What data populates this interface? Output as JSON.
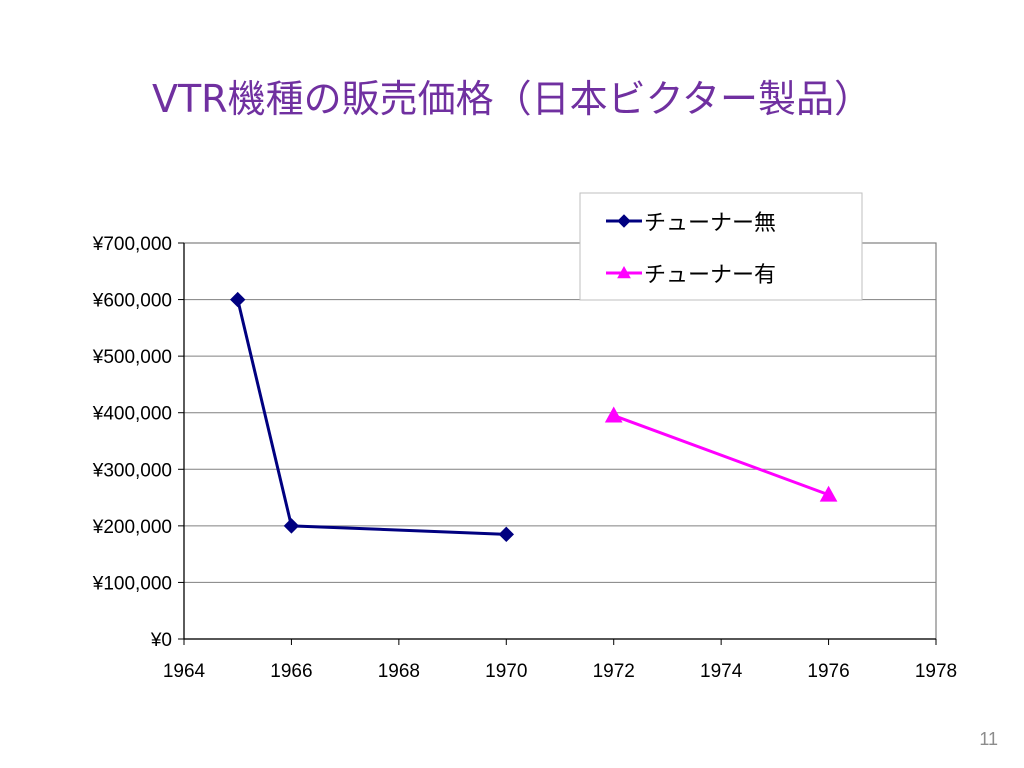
{
  "slide": {
    "title": "VTR機種の販売価格（日本ビクター製品）",
    "page_number": "11"
  },
  "chart_data": {
    "type": "line",
    "title": "",
    "xlabel": "",
    "ylabel": "",
    "xlim": [
      1964,
      1978
    ],
    "ylim": [
      0,
      700000
    ],
    "x_ticks": [
      1964,
      1966,
      1968,
      1970,
      1972,
      1974,
      1976,
      1978
    ],
    "x_tick_labels": [
      "1964",
      "1966",
      "1968",
      "1970",
      "1972",
      "1974",
      "1976",
      "1978"
    ],
    "y_ticks": [
      0,
      100000,
      200000,
      300000,
      400000,
      500000,
      600000,
      700000
    ],
    "y_tick_labels": [
      "¥0",
      "¥100,000",
      "¥200,000",
      "¥300,000",
      "¥400,000",
      "¥500,000",
      "¥600,000",
      "¥700,000"
    ],
    "grid": true,
    "legend_position": "top-right",
    "series": [
      {
        "name": "チューナー無",
        "color": "#000080",
        "marker": "diamond",
        "points": [
          {
            "x": 1965,
            "y": 600000
          },
          {
            "x": 1966,
            "y": 200000
          },
          {
            "x": 1970,
            "y": 185000
          }
        ]
      },
      {
        "name": "チューナー有",
        "color": "#ff00ff",
        "marker": "triangle",
        "points": [
          {
            "x": 1972,
            "y": 395000
          },
          {
            "x": 1976,
            "y": 255000
          }
        ]
      }
    ]
  }
}
